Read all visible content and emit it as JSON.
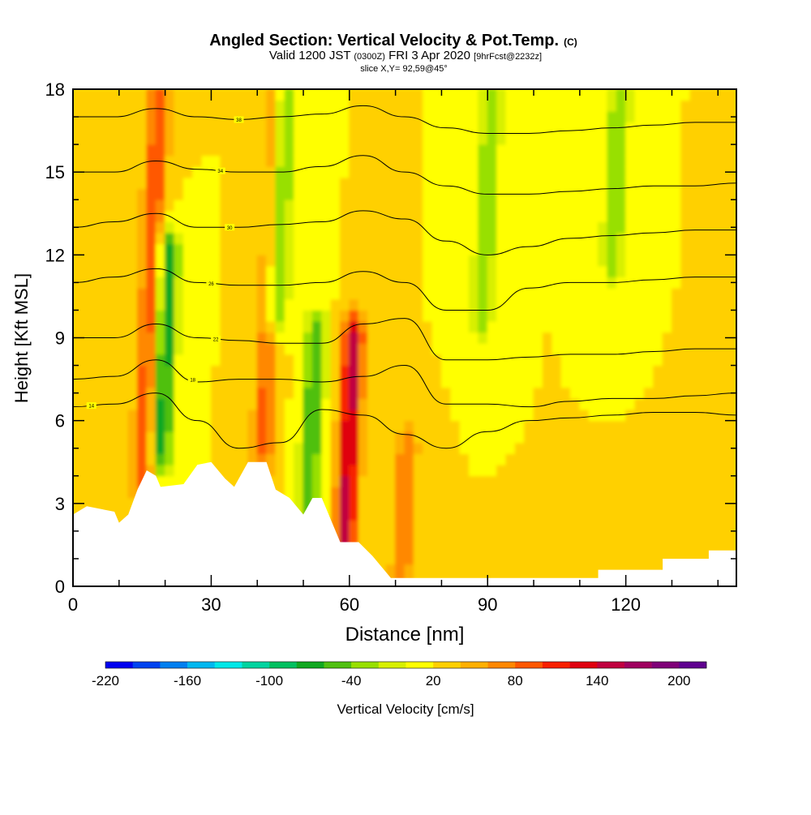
{
  "chart_data": {
    "type": "heatmap",
    "title": {
      "main": "Angled Section: Vertical Velocity & Pot.Temp.",
      "main_suffix": "(C)",
      "valid_prefix": "Valid 1200 JST",
      "valid_utc": "(0300Z)",
      "valid_date": "FRI 3 Apr 2020",
      "forecast": "[9hrFcst@2232z]",
      "slice": "slice X,Y= 92,59@45°"
    },
    "xlabel": "Distance [nm]",
    "ylabel": "Height [Kft MSL]",
    "xlim": [
      0,
      144
    ],
    "ylim": [
      0,
      18
    ],
    "x_ticks": [
      0,
      30,
      60,
      90,
      120
    ],
    "y_ticks": [
      0,
      3,
      6,
      9,
      12,
      15,
      18
    ],
    "colorbar": {
      "label": "Vertical Velocity [cm/s]",
      "min": -220,
      "max": 220,
      "step": 20,
      "tick_labels": [
        -220,
        -160,
        -100,
        -40,
        20,
        80,
        140,
        200
      ],
      "colors": [
        "#0000f0",
        "#0044f0",
        "#0080f0",
        "#00b8f0",
        "#00e8e8",
        "#00d4a0",
        "#00c060",
        "#10a820",
        "#50c010",
        "#98e000",
        "#d8f000",
        "#ffff00",
        "#ffd000",
        "#ffb000",
        "#ff8800",
        "#ff5800",
        "#f82000",
        "#e00010",
        "#c00040",
        "#a00060",
        "#800078",
        "#600090"
      ]
    },
    "updraft_cores": [
      {
        "x": 17,
        "y_low": 4,
        "y_high": 18,
        "w_peak": 100
      },
      {
        "x": 43,
        "y_low": 5,
        "y_high": 18,
        "w_peak": 90
      },
      {
        "x": 60,
        "y_low": 1.5,
        "y_high": 9,
        "w_peak": 150
      },
      {
        "x": 72,
        "y_low": 0.5,
        "y_high": 5,
        "w_peak": 80
      }
    ],
    "downdraft_cores": [
      {
        "x": 20,
        "y_low": 5,
        "y_high": 12,
        "w_peak": -80
      },
      {
        "x": 45,
        "y_low": 10,
        "y_high": 18,
        "w_peak": -80
      },
      {
        "x": 52,
        "y_low": 3,
        "y_high": 9,
        "w_peak": -60
      },
      {
        "x": 90,
        "y_low": 10,
        "y_high": 18,
        "w_peak": -40
      },
      {
        "x": 118,
        "y_low": 12,
        "y_high": 18,
        "w_peak": -40
      }
    ],
    "potential_temperature_contours": [
      {
        "theta": 14,
        "label_x": 4,
        "heights": [
          6.5,
          6.6,
          7.0,
          6.0,
          5.0,
          5.2,
          6.4,
          6.2,
          5.5,
          5.0,
          5.6,
          6.0,
          6.1,
          6.2,
          6.3,
          6.3,
          6.2
        ]
      },
      {
        "theta": 18,
        "label_x": 26,
        "heights": [
          7.5,
          7.6,
          8.2,
          7.4,
          7.5,
          7.5,
          7.4,
          7.6,
          8.0,
          6.6,
          6.6,
          6.5,
          6.7,
          6.8,
          6.8,
          6.9,
          7.0
        ]
      },
      {
        "theta": 22,
        "label_x": 31,
        "heights": [
          9.0,
          9.0,
          9.5,
          9.0,
          8.9,
          8.8,
          8.8,
          9.5,
          9.7,
          8.2,
          8.2,
          8.3,
          8.4,
          8.4,
          8.5,
          8.6,
          8.6
        ]
      },
      {
        "theta": 26,
        "label_x": 30,
        "heights": [
          11.0,
          11.2,
          11.5,
          11.0,
          10.9,
          10.9,
          11.0,
          11.4,
          11.0,
          10.0,
          10.0,
          10.8,
          11.0,
          11.0,
          11.1,
          11.2,
          11.2
        ]
      },
      {
        "theta": 30,
        "label_x": 34,
        "heights": [
          13.0,
          13.2,
          13.5,
          13.0,
          13.0,
          13.1,
          13.2,
          13.6,
          13.3,
          12.5,
          12.0,
          12.3,
          12.6,
          12.7,
          12.8,
          12.9,
          12.9
        ]
      },
      {
        "theta": 34,
        "label_x": 32,
        "heights": [
          15.0,
          15.0,
          15.4,
          15.1,
          15.0,
          15.0,
          15.2,
          15.6,
          15.0,
          14.5,
          14.2,
          14.2,
          14.3,
          14.4,
          14.5,
          14.5,
          14.6
        ]
      },
      {
        "theta": 38,
        "label_x": 36,
        "heights": [
          17.0,
          17.0,
          17.3,
          17.0,
          16.9,
          17.0,
          17.1,
          17.4,
          17.0,
          16.6,
          16.4,
          16.4,
          16.5,
          16.6,
          16.7,
          16.8,
          16.8
        ]
      }
    ],
    "terrain": [
      {
        "x": 0,
        "y": 2.6
      },
      {
        "x": 3,
        "y": 2.9
      },
      {
        "x": 9,
        "y": 2.7
      },
      {
        "x": 10,
        "y": 2.3
      },
      {
        "x": 12,
        "y": 2.6
      },
      {
        "x": 14,
        "y": 3.5
      },
      {
        "x": 16,
        "y": 4.2
      },
      {
        "x": 18,
        "y": 4.0
      },
      {
        "x": 19,
        "y": 3.6
      },
      {
        "x": 24,
        "y": 3.7
      },
      {
        "x": 27,
        "y": 4.4
      },
      {
        "x": 30,
        "y": 4.5
      },
      {
        "x": 33,
        "y": 3.9
      },
      {
        "x": 35,
        "y": 3.6
      },
      {
        "x": 37,
        "y": 4.2
      },
      {
        "x": 38,
        "y": 4.5
      },
      {
        "x": 42,
        "y": 4.5
      },
      {
        "x": 44,
        "y": 3.5
      },
      {
        "x": 47,
        "y": 3.2
      },
      {
        "x": 50,
        "y": 2.6
      },
      {
        "x": 52,
        "y": 3.2
      },
      {
        "x": 54,
        "y": 3.2
      },
      {
        "x": 56,
        "y": 2.4
      },
      {
        "x": 58,
        "y": 1.6
      },
      {
        "x": 62,
        "y": 1.6
      },
      {
        "x": 65,
        "y": 1.1
      },
      {
        "x": 67,
        "y": 0.7
      },
      {
        "x": 69,
        "y": 0.3
      },
      {
        "x": 114,
        "y": 0.3
      },
      {
        "x": 114,
        "y": 0.6
      },
      {
        "x": 128,
        "y": 0.6
      },
      {
        "x": 128,
        "y": 1.0
      },
      {
        "x": 138,
        "y": 1.0
      },
      {
        "x": 138,
        "y": 1.3
      },
      {
        "x": 144,
        "y": 1.3
      }
    ]
  }
}
